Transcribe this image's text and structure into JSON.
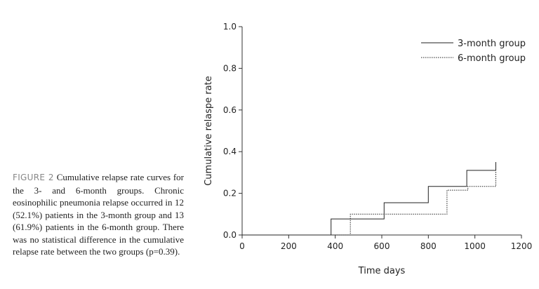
{
  "caption": {
    "label": "FIGURE 2",
    "text": "Cumulative relapse rate curves for the 3- and 6-month groups. Chronic eosinophilic pneumonia relapse occurred in 12 (52.1%) patients in the 3-month group and 13 (61.9%) patients in the 6-month group. There was no statistical difference in the cumulative relapse rate between the two groups (p=0.39)."
  },
  "chart_data": {
    "type": "line",
    "title": "",
    "xlabel": "Time days",
    "ylabel": "Cumulative relaspe rate",
    "xlim": [
      0,
      1200
    ],
    "ylim": [
      0,
      1.0
    ],
    "xticks": [
      0,
      200,
      400,
      600,
      800,
      1000,
      1200
    ],
    "xtick_labels": [
      "0",
      "200",
      "400",
      "600",
      "800",
      "1000",
      "1200"
    ],
    "yticks": [
      0,
      0.2,
      0.4,
      0.6,
      0.8,
      1.0
    ],
    "ytick_labels": [
      "0.0",
      "0.2",
      "0.4",
      "0.6",
      "0.8",
      "1.0"
    ],
    "grid": false,
    "legend_position": "top-right",
    "series": [
      {
        "name": "3-month group",
        "style": "solid",
        "step": true,
        "x": [
          0,
          382,
          382,
          610,
          610,
          800,
          800,
          965,
          965,
          1090,
          1090
        ],
        "y": [
          0,
          0,
          0.077,
          0.077,
          0.155,
          0.155,
          0.233,
          0.233,
          0.31,
          0.31,
          0.35
        ]
      },
      {
        "name": "6-month group",
        "style": "dotted",
        "step": true,
        "x": [
          0,
          465,
          465,
          880,
          880,
          970,
          970,
          1090,
          1090
        ],
        "y": [
          0,
          0,
          0.1,
          0.1,
          0.215,
          0.215,
          0.233,
          0.233,
          0.35
        ]
      }
    ]
  }
}
